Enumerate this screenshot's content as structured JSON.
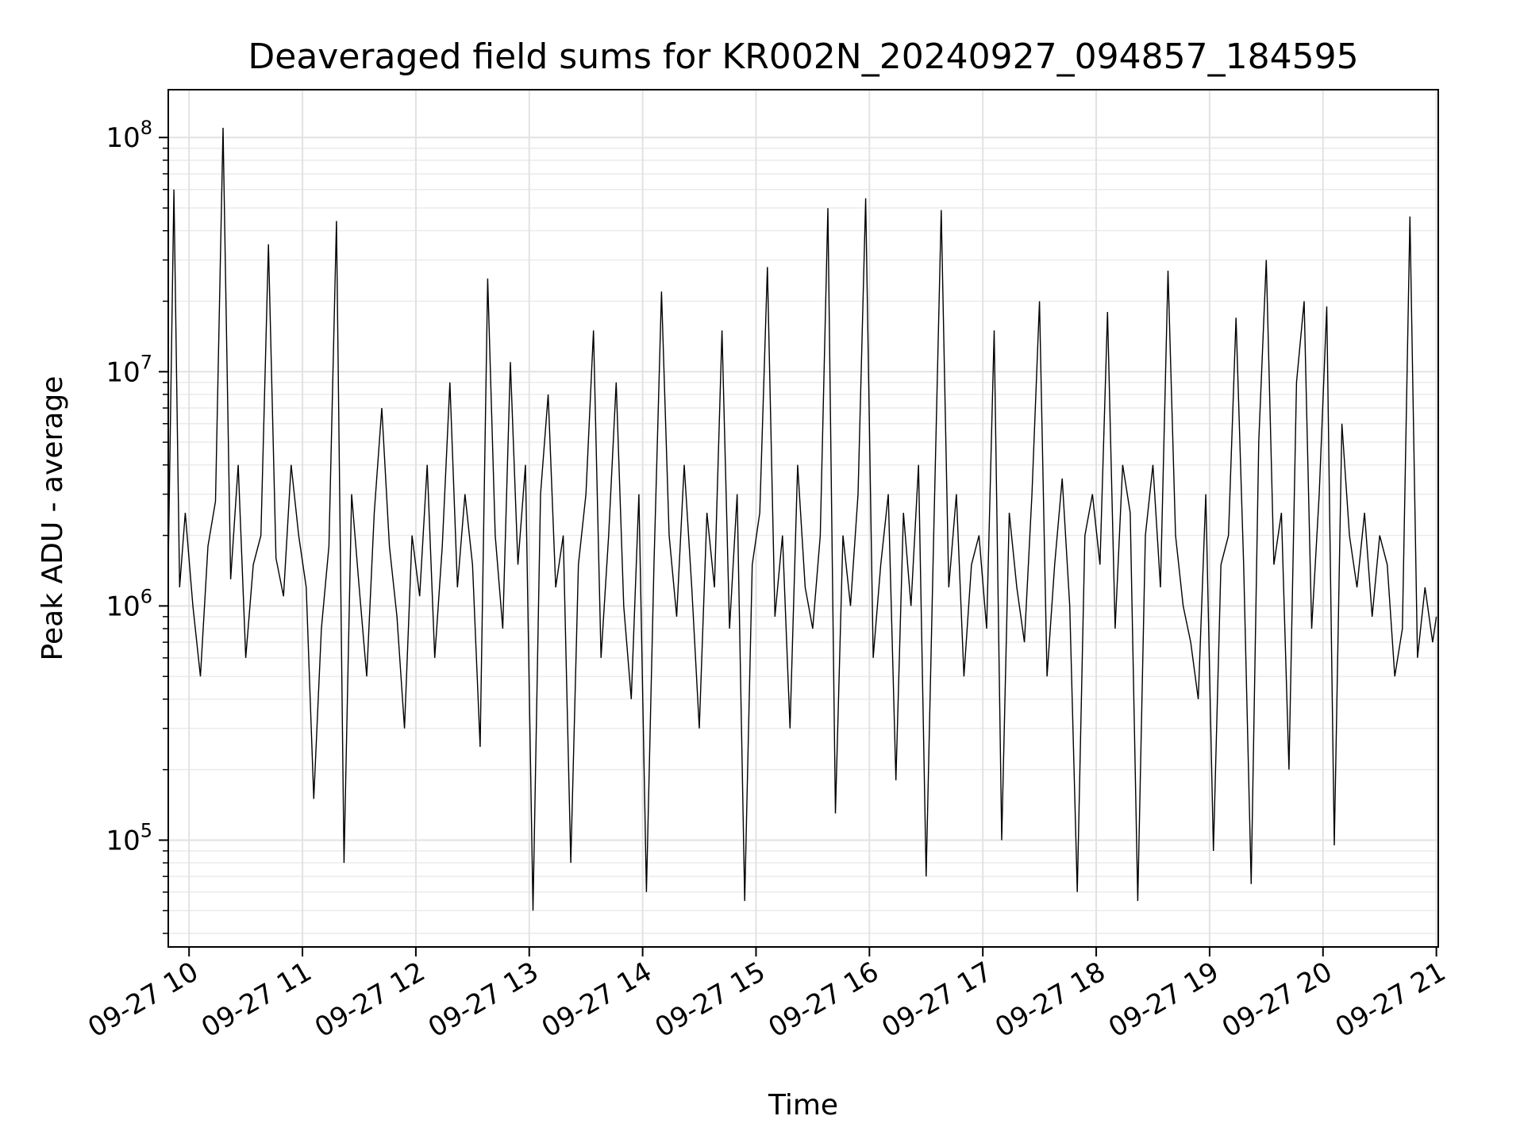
{
  "chart_data": {
    "type": "line",
    "title": "Deaveraged field sums for KR002N_20240927_094857_184595",
    "xlabel": "Time",
    "ylabel": "Peak ADU - average",
    "xlim": [
      "2024-09-27T09:49:00",
      "2024-09-27T21:01:00"
    ],
    "ylim": [
      35000,
      160000000
    ],
    "yscale": "log",
    "grid": true,
    "line_color": "#000000",
    "x_ticks": [
      {
        "value": "2024-09-27T10:00:00",
        "label": "09-27 10"
      },
      {
        "value": "2024-09-27T11:00:00",
        "label": "09-27 11"
      },
      {
        "value": "2024-09-27T12:00:00",
        "label": "09-27 12"
      },
      {
        "value": "2024-09-27T13:00:00",
        "label": "09-27 13"
      },
      {
        "value": "2024-09-27T14:00:00",
        "label": "09-27 14"
      },
      {
        "value": "2024-09-27T15:00:00",
        "label": "09-27 15"
      },
      {
        "value": "2024-09-27T16:00:00",
        "label": "09-27 16"
      },
      {
        "value": "2024-09-27T17:00:00",
        "label": "09-27 17"
      },
      {
        "value": "2024-09-27T18:00:00",
        "label": "09-27 18"
      },
      {
        "value": "2024-09-27T19:00:00",
        "label": "09-27 19"
      },
      {
        "value": "2024-09-27T20:00:00",
        "label": "09-27 20"
      },
      {
        "value": "2024-09-27T21:00:00",
        "label": "09-27 21"
      }
    ],
    "y_ticks": [
      {
        "value": 100000,
        "base": "10",
        "exp": "5"
      },
      {
        "value": 1000000,
        "base": "10",
        "exp": "6"
      },
      {
        "value": 10000000,
        "base": "10",
        "exp": "7"
      },
      {
        "value": 100000000,
        "base": "10",
        "exp": "8"
      }
    ],
    "series": [
      {
        "x": [
          "2024-09-27T09:49:00",
          "2024-09-27T09:52:00",
          "2024-09-27T09:55:00",
          "2024-09-27T09:58:00",
          "2024-09-27T10:02:00",
          "2024-09-27T10:06:00",
          "2024-09-27T10:10:00",
          "2024-09-27T10:14:00",
          "2024-09-27T10:18:00",
          "2024-09-27T10:22:00",
          "2024-09-27T10:26:00",
          "2024-09-27T10:30:00",
          "2024-09-27T10:34:00",
          "2024-09-27T10:38:00",
          "2024-09-27T10:42:00",
          "2024-09-27T10:46:00",
          "2024-09-27T10:50:00",
          "2024-09-27T10:54:00",
          "2024-09-27T10:58:00",
          "2024-09-27T11:02:00",
          "2024-09-27T11:06:00",
          "2024-09-27T11:10:00",
          "2024-09-27T11:14:00",
          "2024-09-27T11:18:00",
          "2024-09-27T11:22:00",
          "2024-09-27T11:26:00",
          "2024-09-27T11:30:00",
          "2024-09-27T11:34:00",
          "2024-09-27T11:38:00",
          "2024-09-27T11:42:00",
          "2024-09-27T11:46:00",
          "2024-09-27T11:50:00",
          "2024-09-27T11:54:00",
          "2024-09-27T11:58:00",
          "2024-09-27T12:02:00",
          "2024-09-27T12:06:00",
          "2024-09-27T12:10:00",
          "2024-09-27T12:14:00",
          "2024-09-27T12:18:00",
          "2024-09-27T12:22:00",
          "2024-09-27T12:26:00",
          "2024-09-27T12:30:00",
          "2024-09-27T12:34:00",
          "2024-09-27T12:38:00",
          "2024-09-27T12:42:00",
          "2024-09-27T12:46:00",
          "2024-09-27T12:50:00",
          "2024-09-27T12:54:00",
          "2024-09-27T12:58:00",
          "2024-09-27T13:02:00",
          "2024-09-27T13:06:00",
          "2024-09-27T13:10:00",
          "2024-09-27T13:14:00",
          "2024-09-27T13:18:00",
          "2024-09-27T13:22:00",
          "2024-09-27T13:26:00",
          "2024-09-27T13:30:00",
          "2024-09-27T13:34:00",
          "2024-09-27T13:38:00",
          "2024-09-27T13:42:00",
          "2024-09-27T13:46:00",
          "2024-09-27T13:50:00",
          "2024-09-27T13:54:00",
          "2024-09-27T13:58:00",
          "2024-09-27T14:02:00",
          "2024-09-27T14:06:00",
          "2024-09-27T14:10:00",
          "2024-09-27T14:14:00",
          "2024-09-27T14:18:00",
          "2024-09-27T14:22:00",
          "2024-09-27T14:26:00",
          "2024-09-27T14:30:00",
          "2024-09-27T14:34:00",
          "2024-09-27T14:38:00",
          "2024-09-27T14:42:00",
          "2024-09-27T14:46:00",
          "2024-09-27T14:50:00",
          "2024-09-27T14:54:00",
          "2024-09-27T14:58:00",
          "2024-09-27T15:02:00",
          "2024-09-27T15:06:00",
          "2024-09-27T15:10:00",
          "2024-09-27T15:14:00",
          "2024-09-27T15:18:00",
          "2024-09-27T15:22:00",
          "2024-09-27T15:26:00",
          "2024-09-27T15:30:00",
          "2024-09-27T15:34:00",
          "2024-09-27T15:38:00",
          "2024-09-27T15:42:00",
          "2024-09-27T15:46:00",
          "2024-09-27T15:50:00",
          "2024-09-27T15:54:00",
          "2024-09-27T15:58:00",
          "2024-09-27T16:02:00",
          "2024-09-27T16:06:00",
          "2024-09-27T16:10:00",
          "2024-09-27T16:14:00",
          "2024-09-27T16:18:00",
          "2024-09-27T16:22:00",
          "2024-09-27T16:26:00",
          "2024-09-27T16:30:00",
          "2024-09-27T16:34:00",
          "2024-09-27T16:38:00",
          "2024-09-27T16:42:00",
          "2024-09-27T16:46:00",
          "2024-09-27T16:50:00",
          "2024-09-27T16:54:00",
          "2024-09-27T16:58:00",
          "2024-09-27T17:02:00",
          "2024-09-27T17:06:00",
          "2024-09-27T17:10:00",
          "2024-09-27T17:14:00",
          "2024-09-27T17:18:00",
          "2024-09-27T17:22:00",
          "2024-09-27T17:26:00",
          "2024-09-27T17:30:00",
          "2024-09-27T17:34:00",
          "2024-09-27T17:38:00",
          "2024-09-27T17:42:00",
          "2024-09-27T17:46:00",
          "2024-09-27T17:50:00",
          "2024-09-27T17:54:00",
          "2024-09-27T17:58:00",
          "2024-09-27T18:02:00",
          "2024-09-27T18:06:00",
          "2024-09-27T18:10:00",
          "2024-09-27T18:14:00",
          "2024-09-27T18:18:00",
          "2024-09-27T18:22:00",
          "2024-09-27T18:26:00",
          "2024-09-27T18:30:00",
          "2024-09-27T18:34:00",
          "2024-09-27T18:38:00",
          "2024-09-27T18:42:00",
          "2024-09-27T18:46:00",
          "2024-09-27T18:50:00",
          "2024-09-27T18:54:00",
          "2024-09-27T18:58:00",
          "2024-09-27T19:02:00",
          "2024-09-27T19:06:00",
          "2024-09-27T19:10:00",
          "2024-09-27T19:14:00",
          "2024-09-27T19:18:00",
          "2024-09-27T19:22:00",
          "2024-09-27T19:26:00",
          "2024-09-27T19:30:00",
          "2024-09-27T19:34:00",
          "2024-09-27T19:38:00",
          "2024-09-27T19:42:00",
          "2024-09-27T19:46:00",
          "2024-09-27T19:50:00",
          "2024-09-27T19:54:00",
          "2024-09-27T19:58:00",
          "2024-09-27T20:02:00",
          "2024-09-27T20:06:00",
          "2024-09-27T20:10:00",
          "2024-09-27T20:14:00",
          "2024-09-27T20:18:00",
          "2024-09-27T20:22:00",
          "2024-09-27T20:26:00",
          "2024-09-27T20:30:00",
          "2024-09-27T20:34:00",
          "2024-09-27T20:38:00",
          "2024-09-27T20:42:00",
          "2024-09-27T20:46:00",
          "2024-09-27T20:50:00",
          "2024-09-27T20:54:00",
          "2024-09-27T20:58:00",
          "2024-09-27T21:00:00"
        ],
        "y": [
          1500000,
          60000000,
          1200000,
          2500000,
          1000000,
          500000,
          1800000,
          2800000,
          110000000,
          1300000,
          4000000,
          600000,
          1500000,
          2000000,
          35000000,
          1600000,
          1100000,
          4000000,
          2000000,
          1200000,
          150000,
          800000,
          1800000,
          44000000,
          80000,
          3000000,
          1200000,
          500000,
          2500000,
          7000000,
          1800000,
          900000,
          300000,
          2000000,
          1100000,
          4000000,
          600000,
          1800000,
          9000000,
          1200000,
          3000000,
          1500000,
          250000,
          25000000,
          2000000,
          800000,
          11000000,
          1500000,
          4000000,
          50000,
          3000000,
          8000000,
          1200000,
          2000000,
          80000,
          1500000,
          3000000,
          15000000,
          600000,
          2000000,
          9000000,
          1000000,
          400000,
          3000000,
          60000,
          1500000,
          22000000,
          2000000,
          900000,
          4000000,
          1200000,
          300000,
          2500000,
          1200000,
          15000000,
          800000,
          3000000,
          55000,
          1500000,
          2500000,
          28000000,
          900000,
          2000000,
          300000,
          4000000,
          1200000,
          800000,
          2000000,
          50000000,
          130000,
          2000000,
          1000000,
          3000000,
          55000000,
          600000,
          1500000,
          3000000,
          180000,
          2500000,
          1000000,
          4000000,
          70000,
          2000000,
          49000000,
          1200000,
          3000000,
          500000,
          1500000,
          2000000,
          800000,
          15000000,
          100000,
          2500000,
          1200000,
          700000,
          3000000,
          20000000,
          500000,
          1500000,
          3500000,
          1000000,
          60000,
          2000000,
          3000000,
          1500000,
          18000000,
          800000,
          4000000,
          2500000,
          55000,
          2000000,
          4000000,
          1200000,
          27000000,
          2000000,
          1000000,
          700000,
          400000,
          3000000,
          90000,
          1500000,
          2000000,
          17000000,
          1500000,
          65000,
          5000000,
          30000000,
          1500000,
          2500000,
          200000,
          9000000,
          20000000,
          800000,
          3000000,
          19000000,
          95000,
          6000000,
          2000000,
          1200000,
          2500000,
          900000,
          2000000,
          1500000,
          500000,
          800000,
          46000000,
          600000,
          1200000,
          700000,
          900000
        ]
      }
    ]
  }
}
